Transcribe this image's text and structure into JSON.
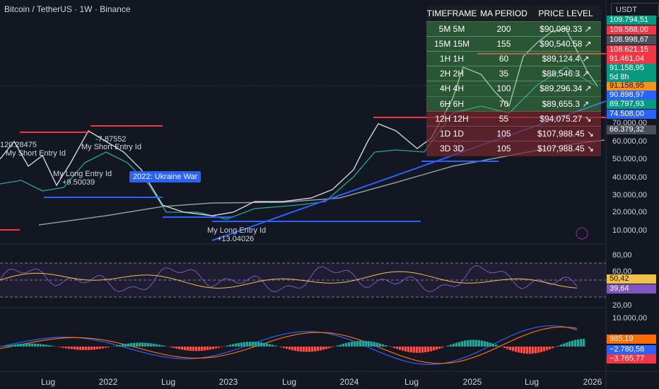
{
  "header": {
    "title": "Bitcoin / TetherUS · 1W · Binance",
    "currency": "USDT"
  },
  "table": {
    "columns": [
      "TIMEFRAME",
      "MA PERIOD",
      "PRICE LEVEL"
    ],
    "rows": [
      [
        "5M 5M",
        "200",
        "$90,089.33 ↗"
      ],
      [
        "15M 15M",
        "155",
        "$90,540.58 ↗"
      ],
      [
        "1H 1H",
        "60",
        "$89,124.4 ↗"
      ],
      [
        "2H 2H",
        "35",
        "$88,546.3 ↗"
      ],
      [
        "4H 4H",
        "100",
        "$89,296.34 ↗"
      ],
      [
        "6H 6H",
        "70",
        "$89,655.3 ↗"
      ],
      [
        "12H 12H",
        "55",
        "$94,075.27 ↘"
      ],
      [
        "1D 1D",
        "105",
        "$107,988.45 ↘"
      ],
      [
        "3D 3D",
        "105",
        "$107,988.45 ↘"
      ]
    ]
  },
  "price_axis": [
    "70.000,00",
    "60.000,00",
    "50.000,00",
    "40.000,00",
    "30.000,00",
    "20.000,00",
    "10.000,00"
  ],
  "price_tags": [
    "109.794,51",
    "109.588,00",
    "108.998,67",
    "108.621,15",
    "91.461,04",
    "91.158,95",
    "91.158,95",
    "90.898,97",
    "89.797,93",
    "74.508,00",
    "66.379,32"
  ],
  "countdown": "5d 8h",
  "rsi_axis": [
    "80,00",
    "60,00",
    "20,00"
  ],
  "rsi_tags": [
    "50,42",
    "39,64"
  ],
  "macd_axis": [
    "10.000,00"
  ],
  "macd_tags": [
    "985,19",
    "−2.780,58",
    "−3.765,77"
  ],
  "time_axis": [
    "Lug",
    "2022",
    "Lug",
    "2023",
    "Lug",
    "2024",
    "Lug",
    "2025",
    "Lug",
    "2026"
  ],
  "annotations": [
    "120.28475",
    "My Short Entry Id",
    "-7.87552",
    "My Short Entry Id",
    "My Long Entry Id",
    "+9.50039",
    "2022: Ukraine War",
    "My Long Entry Id",
    "+13.04026"
  ]
}
